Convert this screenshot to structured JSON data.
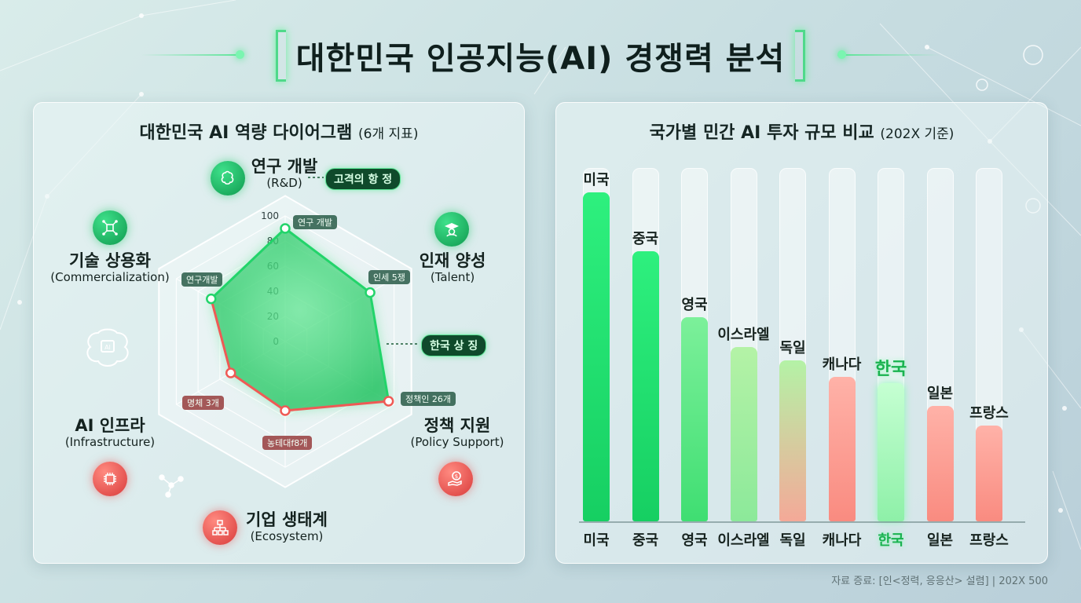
{
  "page_title": "대한민국 인공지능(AI) 경쟁력 분석",
  "left_panel": {
    "title": "대한민국 AI 역량 다이어그램",
    "title_note": "(6개 지표)",
    "ticks": [
      "100",
      "80",
      "60",
      "40",
      "20",
      "0"
    ],
    "axes": [
      {
        "ko": "연구 개발",
        "en": "(R&D)",
        "icon": "brain-icon",
        "status": "green"
      },
      {
        "ko": "인재 양성",
        "en": "(Talent)",
        "icon": "graduate-icon",
        "status": "green"
      },
      {
        "ko": "정책 지원",
        "en": "(Policy Support)",
        "icon": "money-hand-icon",
        "status": "red"
      },
      {
        "ko": "기업 생태계",
        "en": "(Ecosystem)",
        "icon": "org-chart-icon",
        "status": "red"
      },
      {
        "ko": "AI 인프라",
        "en": "(Infrastructure)",
        "icon": "chip-icon",
        "status": "red"
      },
      {
        "ko": "기술 상용화",
        "en": "(Commercialization)",
        "icon": "circuit-icon",
        "status": "green"
      }
    ],
    "callouts": {
      "top": "고격의 항 정",
      "right": "한국 상 징"
    },
    "point_tags": [
      "연구 개발",
      "인세 5쟁",
      "정책인 26개",
      "농테대f8개",
      "명체 3개",
      "연구개발"
    ]
  },
  "chart_data": [
    {
      "type": "radar",
      "title": "대한민국 AI 역량 다이어그램",
      "categories": [
        "연구 개발 (R&D)",
        "인재 양성 (Talent)",
        "정책 지원 (Policy Support)",
        "기업 생태계 (Ecosystem)",
        "AI 인프라 (Infrastructure)",
        "기술 상용화 (Commercialization)"
      ],
      "values": [
        90,
        78,
        95,
        55,
        50,
        68
      ],
      "rlim": [
        0,
        100
      ],
      "grid": true
    },
    {
      "type": "bar",
      "title": "국가별 민간 AI 투자 규모 비교",
      "subtitle": "(202X 기준)",
      "categories": [
        "미국",
        "중국",
        "영국",
        "이스라엘",
        "독일",
        "캐나다",
        "한국",
        "일본",
        "프랑스"
      ],
      "values": [
        100,
        82,
        62,
        53,
        49,
        44,
        42,
        35,
        29
      ],
      "ylim": [
        0,
        100
      ],
      "highlight": "한국",
      "colors": {
        "green": "#22e070",
        "light_green": "#8ef0a0",
        "red": "#fa8c84"
      }
    }
  ],
  "right_panel": {
    "title": "국가별 민간 AI 투자 규모 비교",
    "title_note": "(202X 기준)",
    "top_labels": [
      "미국",
      "중국",
      "영국",
      "이스라엘",
      "독일",
      "캐나다",
      "한국",
      "일본",
      "프랑스"
    ],
    "bottom_labels": [
      "미국",
      "중국",
      "영국",
      "이스라엘",
      "독일",
      "캐나다",
      "한국",
      "일본",
      "프랑스"
    ]
  },
  "source": "자료 증료: [인<정력, 응응산> 설렴] | 202X 500",
  "colors": {
    "accent_green": "#1fd070",
    "accent_red": "#ee5a55",
    "bg": "#cfe3e5"
  }
}
